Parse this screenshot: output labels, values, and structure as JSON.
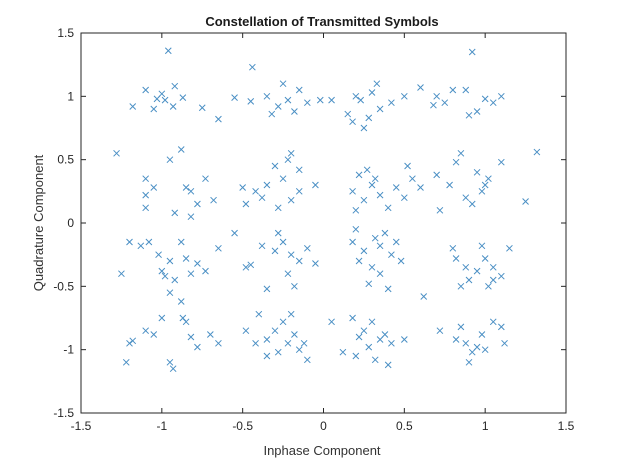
{
  "chart_data": {
    "type": "scatter",
    "title": "Constellation of Transmitted Symbols",
    "xlabel": "Inphase Component",
    "ylabel": "Quadrature Component",
    "xlim": [
      -1.5,
      1.5
    ],
    "ylim": [
      -1.5,
      1.5
    ],
    "xticks": [
      -1.5,
      -1,
      -0.5,
      0,
      0.5,
      1,
      1.5
    ],
    "yticks": [
      -1.5,
      -1,
      -0.5,
      0,
      0.5,
      1,
      1.5
    ],
    "xtick_labels": [
      "-1.5",
      "-1",
      "-0.5",
      "0",
      "0.5",
      "1",
      "1.5"
    ],
    "ytick_labels": [
      "-1.5",
      "-1",
      "-0.5",
      "0",
      "0.5",
      "1",
      "1.5"
    ],
    "grid": false,
    "marker": "x",
    "marker_color": "#4a8fc4",
    "points": [
      [
        -1.0,
        1.02
      ],
      [
        -0.96,
        1.36
      ],
      [
        -1.03,
        0.98
      ],
      [
        -1.18,
        0.92
      ],
      [
        -0.93,
        0.92
      ],
      [
        -1.1,
        1.05
      ],
      [
        -0.87,
        0.99
      ],
      [
        -1.05,
        0.9
      ],
      [
        -0.75,
        0.91
      ],
      [
        -0.92,
        1.08
      ],
      [
        -0.65,
        0.82
      ],
      [
        -0.98,
        0.97
      ],
      [
        -0.44,
        1.23
      ],
      [
        -0.35,
        1.0
      ],
      [
        -0.22,
        0.97
      ],
      [
        -0.32,
        0.86
      ],
      [
        -0.15,
        1.05
      ],
      [
        -0.28,
        0.92
      ],
      [
        -0.18,
        0.88
      ],
      [
        -0.1,
        0.95
      ],
      [
        -0.02,
        0.97
      ],
      [
        -0.45,
        0.96
      ],
      [
        -0.55,
        0.99
      ],
      [
        -0.25,
        1.1
      ],
      [
        0.05,
        0.97
      ],
      [
        0.15,
        0.86
      ],
      [
        0.23,
        0.97
      ],
      [
        0.3,
        1.03
      ],
      [
        0.35,
        0.9
      ],
      [
        0.2,
        1.0
      ],
      [
        0.33,
        1.1
      ],
      [
        0.42,
        0.95
      ],
      [
        0.28,
        0.83
      ],
      [
        0.5,
        1.0
      ],
      [
        0.25,
        0.75
      ],
      [
        0.18,
        0.8
      ],
      [
        0.6,
        1.07
      ],
      [
        0.68,
        0.93
      ],
      [
        0.8,
        1.05
      ],
      [
        0.92,
        1.35
      ],
      [
        0.95,
        0.88
      ],
      [
        1.05,
        0.95
      ],
      [
        1.0,
        0.98
      ],
      [
        0.9,
        0.85
      ],
      [
        0.75,
        0.95
      ],
      [
        0.88,
        1.05
      ],
      [
        1.1,
        1.0
      ],
      [
        0.7,
        1.0
      ],
      [
        -1.28,
        0.55
      ],
      [
        -1.1,
        0.35
      ],
      [
        -1.1,
        0.22
      ],
      [
        -1.05,
        0.28
      ],
      [
        -1.1,
        0.12
      ],
      [
        -0.95,
        0.5
      ],
      [
        -0.88,
        0.58
      ],
      [
        -0.82,
        0.25
      ],
      [
        -0.73,
        0.35
      ],
      [
        -0.78,
        0.15
      ],
      [
        -0.82,
        0.05
      ],
      [
        -0.85,
        0.28
      ],
      [
        -0.92,
        0.08
      ],
      [
        -0.68,
        0.18
      ],
      [
        -0.5,
        0.28
      ],
      [
        -0.48,
        0.15
      ],
      [
        -0.42,
        0.25
      ],
      [
        -0.35,
        0.3
      ],
      [
        -0.3,
        0.45
      ],
      [
        -0.2,
        0.55
      ],
      [
        -0.25,
        0.35
      ],
      [
        -0.15,
        0.25
      ],
      [
        -0.2,
        0.18
      ],
      [
        -0.05,
        0.3
      ],
      [
        -0.28,
        0.12
      ],
      [
        -0.15,
        0.42
      ],
      [
        -0.38,
        0.2
      ],
      [
        -0.22,
        0.5
      ],
      [
        0.18,
        0.25
      ],
      [
        0.25,
        0.18
      ],
      [
        0.22,
        0.38
      ],
      [
        0.3,
        0.3
      ],
      [
        0.35,
        0.22
      ],
      [
        0.4,
        0.12
      ],
      [
        0.45,
        0.28
      ],
      [
        0.52,
        0.45
      ],
      [
        0.32,
        0.35
      ],
      [
        0.5,
        0.2
      ],
      [
        0.2,
        0.1
      ],
      [
        0.55,
        0.35
      ],
      [
        0.27,
        0.42
      ],
      [
        0.6,
        0.28
      ],
      [
        0.7,
        0.38
      ],
      [
        0.72,
        0.1
      ],
      [
        0.82,
        0.48
      ],
      [
        0.78,
        0.3
      ],
      [
        0.88,
        0.2
      ],
      [
        0.92,
        0.15
      ],
      [
        0.98,
        0.25
      ],
      [
        1.02,
        0.35
      ],
      [
        1.1,
        0.48
      ],
      [
        1.25,
        0.17
      ],
      [
        1.32,
        0.56
      ],
      [
        1.0,
        0.3
      ],
      [
        0.85,
        0.55
      ],
      [
        0.95,
        0.4
      ],
      [
        -1.25,
        -0.4
      ],
      [
        -1.2,
        -0.15
      ],
      [
        -1.13,
        -0.18
      ],
      [
        -1.08,
        -0.15
      ],
      [
        -1.02,
        -0.25
      ],
      [
        -1.0,
        -0.38
      ],
      [
        -0.98,
        -0.42
      ],
      [
        -0.95,
        -0.3
      ],
      [
        -0.92,
        -0.45
      ],
      [
        -0.88,
        -0.15
      ],
      [
        -0.85,
        -0.28
      ],
      [
        -0.82,
        -0.4
      ],
      [
        -0.78,
        -0.32
      ],
      [
        -0.73,
        -0.38
      ],
      [
        -0.65,
        -0.2
      ],
      [
        -0.95,
        -0.55
      ],
      [
        -0.55,
        -0.08
      ],
      [
        -0.48,
        -0.35
      ],
      [
        -0.45,
        -0.33
      ],
      [
        -0.38,
        -0.18
      ],
      [
        -0.3,
        -0.22
      ],
      [
        -0.25,
        -0.15
      ],
      [
        -0.2,
        -0.25
      ],
      [
        -0.22,
        -0.4
      ],
      [
        -0.15,
        -0.3
      ],
      [
        -0.1,
        -0.2
      ],
      [
        -0.35,
        -0.52
      ],
      [
        -0.18,
        -0.5
      ],
      [
        -0.05,
        -0.32
      ],
      [
        -0.28,
        -0.08
      ],
      [
        0.18,
        -0.15
      ],
      [
        0.22,
        -0.3
      ],
      [
        0.25,
        -0.22
      ],
      [
        0.3,
        -0.35
      ],
      [
        0.35,
        -0.18
      ],
      [
        0.38,
        -0.08
      ],
      [
        0.42,
        -0.25
      ],
      [
        0.45,
        -0.15
      ],
      [
        0.35,
        -0.4
      ],
      [
        0.4,
        -0.52
      ],
      [
        0.28,
        -0.48
      ],
      [
        0.48,
        -0.3
      ],
      [
        0.32,
        -0.12
      ],
      [
        0.2,
        -0.05
      ],
      [
        0.62,
        -0.58
      ],
      [
        0.8,
        -0.2
      ],
      [
        0.82,
        -0.28
      ],
      [
        0.88,
        -0.35
      ],
      [
        0.9,
        -0.45
      ],
      [
        0.95,
        -0.38
      ],
      [
        1.0,
        -0.28
      ],
      [
        1.05,
        -0.35
      ],
      [
        1.02,
        -0.5
      ],
      [
        1.1,
        -0.42
      ],
      [
        1.15,
        -0.2
      ],
      [
        0.98,
        -0.18
      ],
      [
        0.85,
        -0.5
      ],
      [
        1.05,
        -0.45
      ],
      [
        -1.22,
        -1.1
      ],
      [
        -1.2,
        -0.95
      ],
      [
        -1.18,
        -0.93
      ],
      [
        -1.1,
        -0.85
      ],
      [
        -1.05,
        -0.88
      ],
      [
        -1.0,
        -0.75
      ],
      [
        -0.95,
        -1.1
      ],
      [
        -0.93,
        -1.15
      ],
      [
        -0.87,
        -0.75
      ],
      [
        -0.85,
        -0.78
      ],
      [
        -0.82,
        -0.9
      ],
      [
        -0.78,
        -0.98
      ],
      [
        -0.7,
        -0.88
      ],
      [
        -0.65,
        -0.95
      ],
      [
        -0.88,
        -0.62
      ],
      [
        -0.48,
        -0.85
      ],
      [
        -0.4,
        -0.72
      ],
      [
        -0.35,
        -0.92
      ],
      [
        -0.3,
        -0.85
      ],
      [
        -0.35,
        -1.05
      ],
      [
        -0.28,
        -1.02
      ],
      [
        -0.22,
        -0.95
      ],
      [
        -0.18,
        -0.88
      ],
      [
        -0.15,
        -1.0
      ],
      [
        -0.12,
        -0.95
      ],
      [
        -0.25,
        -0.78
      ],
      [
        -0.42,
        -0.95
      ],
      [
        -0.1,
        -1.08
      ],
      [
        -0.2,
        -0.72
      ],
      [
        0.05,
        -0.78
      ],
      [
        0.18,
        -0.75
      ],
      [
        0.22,
        -0.9
      ],
      [
        0.25,
        -0.85
      ],
      [
        0.2,
        -1.05
      ],
      [
        0.28,
        -0.98
      ],
      [
        0.32,
        -1.08
      ],
      [
        0.35,
        -0.92
      ],
      [
        0.38,
        -0.88
      ],
      [
        0.4,
        -1.12
      ],
      [
        0.42,
        -0.95
      ],
      [
        0.5,
        -0.92
      ],
      [
        0.3,
        -0.78
      ],
      [
        0.12,
        -1.02
      ],
      [
        0.72,
        -0.85
      ],
      [
        0.82,
        -0.92
      ],
      [
        0.88,
        -0.95
      ],
      [
        0.9,
        -1.1
      ],
      [
        0.92,
        -1.02
      ],
      [
        0.95,
        -0.98
      ],
      [
        1.0,
        -1.0
      ],
      [
        1.05,
        -0.78
      ],
      [
        1.1,
        -0.82
      ],
      [
        0.98,
        -0.88
      ],
      [
        1.12,
        -0.95
      ],
      [
        0.85,
        -0.82
      ]
    ]
  }
}
